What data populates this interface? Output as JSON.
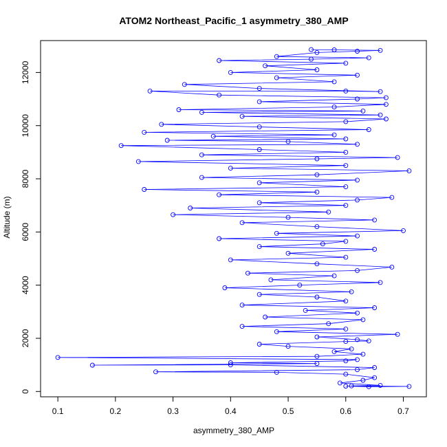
{
  "chart_data": {
    "type": "scatter",
    "title": "ATOM2 Northeast_Pacific_1 asymmetry_380_AMP",
    "xlabel": "asymmetry_380_AMP",
    "ylabel": "Altitude (m)",
    "xlim": [
      0.07,
      0.74
    ],
    "ylim": [
      -200,
      13200
    ],
    "x_ticks": [
      0.1,
      0.2,
      0.3,
      0.4,
      0.5,
      0.6,
      0.7
    ],
    "x_tick_labels": [
      "0.1",
      "0.2",
      "0.3",
      "0.4",
      "0.5",
      "0.6",
      "0.7"
    ],
    "y_ticks": [
      0,
      2000,
      4000,
      6000,
      8000,
      10000,
      12000
    ],
    "y_tick_labels": [
      "0",
      "2000",
      "4000",
      "6000",
      "8000",
      "10000",
      "12000"
    ],
    "grid": false,
    "legend": "none",
    "marker": "open-circle",
    "connected": true,
    "color": "#0000ff",
    "series": [
      {
        "values": [
          [
            0.6,
            200
          ],
          [
            0.64,
            180
          ],
          [
            0.71,
            190
          ],
          [
            0.61,
            210
          ],
          [
            0.66,
            230
          ],
          [
            0.59,
            320
          ],
          [
            0.63,
            420
          ],
          [
            0.65,
            520
          ],
          [
            0.6,
            650
          ],
          [
            0.48,
            720
          ],
          [
            0.27,
            740
          ],
          [
            0.62,
            820
          ],
          [
            0.65,
            900
          ],
          [
            0.4,
            1000
          ],
          [
            0.16,
            990
          ],
          [
            0.55,
            1050
          ],
          [
            0.4,
            1080
          ],
          [
            0.6,
            1150
          ],
          [
            0.62,
            1200
          ],
          [
            0.1,
            1280
          ],
          [
            0.55,
            1320
          ],
          [
            0.63,
            1400
          ],
          [
            0.58,
            1500
          ],
          [
            0.61,
            1600
          ],
          [
            0.5,
            1700
          ],
          [
            0.45,
            1780
          ],
          [
            0.6,
            1880
          ],
          [
            0.64,
            1900
          ],
          [
            0.62,
            1950
          ],
          [
            0.55,
            2050
          ],
          [
            0.69,
            2150
          ],
          [
            0.48,
            2250
          ],
          [
            0.6,
            2350
          ],
          [
            0.42,
            2450
          ],
          [
            0.57,
            2550
          ],
          [
            0.63,
            2700
          ],
          [
            0.46,
            2800
          ],
          [
            0.62,
            2950
          ],
          [
            0.53,
            3050
          ],
          [
            0.65,
            3150
          ],
          [
            0.42,
            3250
          ],
          [
            0.6,
            3400
          ],
          [
            0.55,
            3550
          ],
          [
            0.45,
            3650
          ],
          [
            0.61,
            3750
          ],
          [
            0.39,
            3900
          ],
          [
            0.52,
            4000
          ],
          [
            0.66,
            4100
          ],
          [
            0.47,
            4200
          ],
          [
            0.58,
            4350
          ],
          [
            0.43,
            4450
          ],
          [
            0.62,
            4550
          ],
          [
            0.68,
            4680
          ],
          [
            0.55,
            4800
          ],
          [
            0.4,
            4950
          ],
          [
            0.6,
            5050
          ],
          [
            0.5,
            5200
          ],
          [
            0.65,
            5350
          ],
          [
            0.45,
            5450
          ],
          [
            0.56,
            5550
          ],
          [
            0.6,
            5650
          ],
          [
            0.38,
            5750
          ],
          [
            0.62,
            5850
          ],
          [
            0.48,
            5950
          ],
          [
            0.7,
            6050
          ],
          [
            0.55,
            6200
          ],
          [
            0.42,
            6350
          ],
          [
            0.65,
            6450
          ],
          [
            0.5,
            6550
          ],
          [
            0.3,
            6650
          ],
          [
            0.57,
            6750
          ],
          [
            0.33,
            6900
          ],
          [
            0.6,
            7000
          ],
          [
            0.45,
            7100
          ],
          [
            0.62,
            7200
          ],
          [
            0.68,
            7300
          ],
          [
            0.38,
            7400
          ],
          [
            0.55,
            7500
          ],
          [
            0.25,
            7600
          ],
          [
            0.6,
            7700
          ],
          [
            0.45,
            7850
          ],
          [
            0.62,
            7950
          ],
          [
            0.35,
            8050
          ],
          [
            0.55,
            8150
          ],
          [
            0.71,
            8300
          ],
          [
            0.4,
            8400
          ],
          [
            0.6,
            8500
          ],
          [
            0.24,
            8650
          ],
          [
            0.55,
            8750
          ],
          [
            0.69,
            8800
          ],
          [
            0.35,
            8900
          ],
          [
            0.6,
            9000
          ],
          [
            0.45,
            9100
          ],
          [
            0.21,
            9250
          ],
          [
            0.62,
            9300
          ],
          [
            0.5,
            9400
          ],
          [
            0.29,
            9450
          ],
          [
            0.6,
            9500
          ],
          [
            0.37,
            9600
          ],
          [
            0.58,
            9650
          ],
          [
            0.25,
            9750
          ],
          [
            0.64,
            9850
          ],
          [
            0.45,
            9950
          ],
          [
            0.28,
            10050
          ],
          [
            0.6,
            10150
          ],
          [
            0.67,
            10250
          ],
          [
            0.42,
            10350
          ],
          [
            0.66,
            10400
          ],
          [
            0.35,
            10500
          ],
          [
            0.63,
            10550
          ],
          [
            0.31,
            10600
          ],
          [
            0.58,
            10700
          ],
          [
            0.67,
            10800
          ],
          [
            0.45,
            10900
          ],
          [
            0.62,
            11000
          ],
          [
            0.67,
            11050
          ],
          [
            0.38,
            11150
          ],
          [
            0.26,
            11300
          ],
          [
            0.6,
            11300
          ],
          [
            0.66,
            11280
          ],
          [
            0.45,
            11400
          ],
          [
            0.32,
            11550
          ],
          [
            0.58,
            11650
          ],
          [
            0.48,
            11800
          ],
          [
            0.62,
            11900
          ],
          [
            0.4,
            12000
          ],
          [
            0.55,
            12100
          ],
          [
            0.46,
            12250
          ],
          [
            0.6,
            12350
          ],
          [
            0.38,
            12450
          ],
          [
            0.54,
            12500
          ],
          [
            0.64,
            12550
          ],
          [
            0.48,
            12600
          ],
          [
            0.55,
            12750
          ],
          [
            0.62,
            12800
          ],
          [
            0.66,
            12830
          ],
          [
            0.58,
            12850
          ],
          [
            0.54,
            12860
          ]
        ]
      }
    ]
  }
}
